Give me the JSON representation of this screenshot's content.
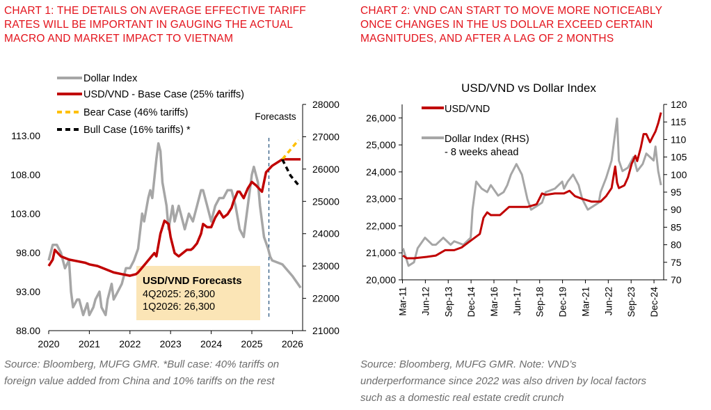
{
  "chart1": {
    "title_lines": [
      "CHART 1: THE DETAILS ON AVERAGE EFFECTIVE TARIFF",
      "RATES WILL BE IMPORTANT IN GAUGING THE ACTUAL",
      "MACRO AND MARKET IMPACT TO VIETNAM"
    ],
    "source_lines": [
      "Source: Bloomberg, MUFG GMR.  *Bull case: 40% tariffs on",
      "foreign value added from China and 10% tariffs on the rest"
    ],
    "forecasts_label": "Forecasts",
    "forecast_box": {
      "heading": "USD/VND Forecasts",
      "line1": "4Q2025: 26,300",
      "line2": "1Q2026: 26,300"
    },
    "colors": {
      "dollar_index": "#a6a6a6",
      "base": "#c00000",
      "bear": "#ffc000",
      "bull": "#000000",
      "box": "#fbe5b6",
      "forecast_line": "#1f4e79",
      "title": "#e3121b"
    }
  },
  "chart2": {
    "title_lines": [
      "CHART 2: VND CAN START TO MOVE MORE NOTICEABLY",
      "ONCE CHANGES IN THE US DOLLAR EXCEED CERTAIN",
      "MAGNITUDES, AND AFTER A LAG OF 2 MONTHS"
    ],
    "source_lines": [
      "Source: Bloomberg, MUFG GMR.  Note: VND’s",
      "underperformance since 2022 was also driven by local factors",
      "such as a domestic real estate credit crunch"
    ],
    "legend_rhs_note": "- 8 weeks ahead",
    "colors": {
      "usdvnd": "#c00000",
      "dxy": "#a6a6a6"
    }
  },
  "chart_data": [
    {
      "type": "line",
      "title": "",
      "legend_position": "top-left",
      "grid": false,
      "x_ticks": [
        "2020",
        "2021",
        "2022",
        "2023",
        "2024",
        "2025",
        "2026"
      ],
      "xlim": [
        2020.0,
        2026.25
      ],
      "y_left": {
        "ticks": [
          "88.00",
          "93.00",
          "98.00",
          "103.00",
          "108.00",
          "113.00"
        ],
        "lim": [
          88,
          117
        ]
      },
      "y_right": {
        "ticks": [
          "21000",
          "22000",
          "23000",
          "24000",
          "25000",
          "26000",
          "27000",
          "28000"
        ],
        "lim": [
          21000,
          28000
        ]
      },
      "forecast_start": 2025.42,
      "series": [
        {
          "name": "Dollar Index",
          "axis": "left",
          "x": [
            2020.0,
            2020.1,
            2020.2,
            2020.3,
            2020.4,
            2020.5,
            2020.55,
            2020.6,
            2020.7,
            2020.75,
            2020.85,
            2020.95,
            2021.0,
            2021.1,
            2021.15,
            2021.25,
            2021.3,
            2021.4,
            2021.45,
            2021.55,
            2021.6,
            2021.7,
            2021.8,
            2021.9,
            2022.0,
            2022.1,
            2022.2,
            2022.3,
            2022.35,
            2022.45,
            2022.5,
            2022.55,
            2022.65,
            2022.7,
            2022.75,
            2022.8,
            2022.9,
            2022.95,
            2023.05,
            2023.1,
            2023.2,
            2023.3,
            2023.35,
            2023.45,
            2023.55,
            2023.65,
            2023.75,
            2023.8,
            2023.9,
            2024.0,
            2024.1,
            2024.2,
            2024.3,
            2024.4,
            2024.5,
            2024.6,
            2024.7,
            2024.8,
            2024.9,
            2025.0,
            2025.05,
            2025.15,
            2025.2,
            2025.3,
            2025.4,
            2025.45,
            2025.5,
            2025.75,
            2026.0,
            2026.2
          ],
          "values": [
            97,
            99,
            99,
            98,
            96,
            97,
            93,
            91,
            92,
            92,
            90,
            91.5,
            90,
            91,
            92,
            93,
            91,
            90,
            92,
            94,
            92,
            93,
            94,
            96,
            96,
            97,
            98.5,
            103,
            102,
            105,
            106,
            105,
            110,
            112,
            111,
            107,
            104,
            101,
            104,
            102,
            104,
            102,
            101,
            103,
            102,
            104,
            106,
            106,
            104,
            102,
            104,
            105,
            105,
            106,
            106,
            104,
            101,
            100,
            104,
            108,
            109,
            107,
            104,
            100,
            98.5,
            97.5,
            97,
            96.5,
            95,
            93.5
          ]
        },
        {
          "name": "USD/VND -  Base Case (25% tariffs)",
          "axis": "right",
          "x": [
            2020.0,
            2020.1,
            2020.15,
            2020.3,
            2020.5,
            2020.7,
            2020.9,
            2021.0,
            2021.2,
            2021.4,
            2021.6,
            2021.8,
            2022.0,
            2022.15,
            2022.2,
            2022.3,
            2022.4,
            2022.5,
            2022.6,
            2022.65,
            2022.75,
            2022.85,
            2022.95,
            2023.0,
            2023.1,
            2023.2,
            2023.3,
            2023.4,
            2023.5,
            2023.55,
            2023.65,
            2023.75,
            2023.8,
            2023.9,
            2024.0,
            2024.1,
            2024.15,
            2024.2,
            2024.3,
            2024.4,
            2024.5,
            2024.55,
            2024.65,
            2024.7,
            2024.8,
            2024.9,
            2025.0,
            2025.1,
            2025.25,
            2025.35,
            2025.5,
            2025.75,
            2026.0,
            2026.2
          ],
          "values": [
            23000,
            23200,
            23500,
            23300,
            23200,
            23150,
            23100,
            23050,
            23000,
            22900,
            22800,
            22750,
            22700,
            22750,
            22800,
            22950,
            23100,
            23250,
            23400,
            23300,
            24000,
            24400,
            24300,
            23900,
            23400,
            23300,
            23400,
            23500,
            23500,
            23550,
            23700,
            24000,
            24300,
            24200,
            24200,
            24500,
            24600,
            24700,
            24500,
            24600,
            24800,
            25000,
            25300,
            25300,
            25100,
            25400,
            25600,
            25500,
            25300,
            25900,
            26100,
            26300,
            26300,
            26300
          ]
        },
        {
          "name": "Bear Case (46% tariffs)",
          "axis": "right",
          "x": [
            2025.75,
            2025.95,
            2026.15
          ],
          "values": [
            26300,
            26600,
            26900
          ]
        },
        {
          "name": "Bull Case (16% tariffs) *",
          "axis": "right",
          "x": [
            2025.75,
            2025.95,
            2026.15
          ],
          "values": [
            26300,
            25800,
            25500
          ]
        }
      ]
    },
    {
      "type": "line",
      "title": "USD/VND vs Dollar Index",
      "legend_position": "top-left",
      "grid": false,
      "x_ticks": [
        "Mar-11",
        "Jun-12",
        "Sep-13",
        "Dec-14",
        "Mar-16",
        "Jun-17",
        "Sep-18",
        "Dec-19",
        "Mar-21",
        "Jun-22",
        "Sep-23",
        "Dec-24"
      ],
      "xlim": [
        2011.15,
        2025.45
      ],
      "y_left": {
        "ticks": [
          "20,000",
          "21,000",
          "22,000",
          "23,000",
          "24,000",
          "25,000",
          "26,000"
        ],
        "lim": [
          20000,
          26500
        ]
      },
      "y_right": {
        "ticks": [
          "70",
          "75",
          "80",
          "85",
          "90",
          "95",
          "100",
          "105",
          "110",
          "115",
          "120"
        ],
        "lim": [
          70,
          120
        ]
      },
      "series": [
        {
          "name": "USD/VND",
          "axis": "left",
          "x": [
            2011.2,
            2011.4,
            2011.8,
            2012.5,
            2013.0,
            2013.5,
            2014.0,
            2014.4,
            2014.8,
            2015.0,
            2015.4,
            2015.6,
            2015.8,
            2016.0,
            2016.5,
            2017.0,
            2017.5,
            2018.0,
            2018.5,
            2018.8,
            2019.0,
            2019.5,
            2020.0,
            2020.3,
            2020.6,
            2021.0,
            2021.5,
            2021.9,
            2022.0,
            2022.3,
            2022.6,
            2022.8,
            2022.9,
            2023.0,
            2023.3,
            2023.5,
            2023.7,
            2023.9,
            2024.0,
            2024.2,
            2024.35,
            2024.5,
            2024.7,
            2024.85,
            2025.0,
            2025.15,
            2025.3
          ],
          "values": [
            20900,
            20800,
            20800,
            20850,
            20900,
            21100,
            21100,
            21200,
            21400,
            21500,
            21700,
            22300,
            22500,
            22400,
            22400,
            22700,
            22700,
            22700,
            22800,
            23200,
            23150,
            23200,
            23200,
            23300,
            23100,
            23000,
            22900,
            22900,
            22900,
            23100,
            23400,
            24200,
            23600,
            23400,
            23500,
            23800,
            24300,
            24600,
            24400,
            24900,
            25400,
            25400,
            25100,
            25300,
            25500,
            25800,
            26200
          ]
        },
        {
          "name": "Dollar Index (RHS)",
          "axis": "right",
          "x": [
            2011.2,
            2011.5,
            2011.8,
            2012.0,
            2012.4,
            2012.8,
            2013.0,
            2013.4,
            2013.8,
            2014.0,
            2014.5,
            2014.9,
            2015.0,
            2015.2,
            2015.5,
            2015.8,
            2016.0,
            2016.4,
            2016.7,
            2016.9,
            2017.1,
            2017.4,
            2017.7,
            2018.0,
            2018.2,
            2018.5,
            2018.8,
            2019.0,
            2019.5,
            2019.9,
            2020.0,
            2020.2,
            2020.5,
            2020.8,
            2021.0,
            2021.3,
            2021.6,
            2021.9,
            2022.0,
            2022.3,
            2022.6,
            2022.75,
            2022.9,
            2023.0,
            2023.2,
            2023.5,
            2023.8,
            2024.0,
            2024.3,
            2024.5,
            2024.7,
            2024.9,
            2025.0,
            2025.15,
            2025.3
          ],
          "values": [
            79,
            74,
            75,
            79,
            82,
            80,
            80,
            82,
            80,
            81,
            80,
            82,
            90,
            98,
            96,
            95,
            97,
            94,
            95,
            97,
            100,
            103,
            100,
            93,
            90,
            91,
            92,
            95,
            96,
            98,
            96,
            98,
            100,
            97,
            93,
            90,
            91,
            92,
            95,
            99,
            104,
            110,
            116,
            104,
            101,
            102,
            105,
            101,
            103,
            106,
            105,
            104,
            108,
            101,
            97
          ]
        }
      ]
    }
  ]
}
